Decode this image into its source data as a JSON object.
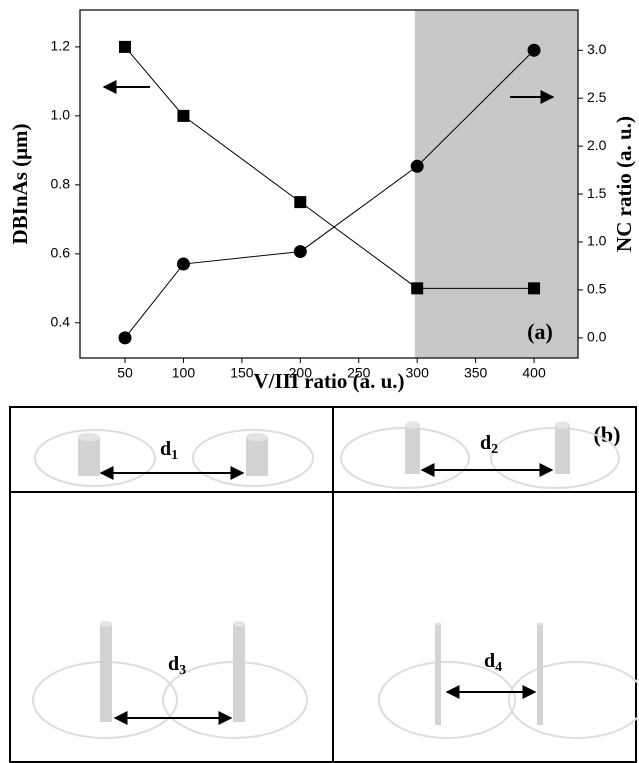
{
  "chart_data": {
    "type": "line",
    "x_label": "V/III ratio (a. u.)",
    "y_label": "DBInAs (μm)",
    "y2_label": "NC ratio (a. u.)",
    "annotation": "(a)",
    "x": [
      50,
      100,
      200,
      300,
      400
    ],
    "series": [
      {
        "color": "#000000",
        "marker": "square",
        "values": [
          1.2,
          1.0,
          0.75,
          0.5,
          0.5
        ]
      },
      {
        "color": "#000000",
        "marker": "circle",
        "axis": "y2",
        "values": [
          0.0,
          0.77,
          0.9,
          1.79,
          3.0
        ]
      }
    ],
    "xlim": [
      11.5,
      437.6
    ],
    "xticks": [
      50,
      100,
      150,
      200,
      250,
      300,
      350,
      400
    ],
    "ylim": [
      0.298,
      1.307
    ],
    "yticks": [
      0.4,
      0.6,
      0.8,
      {
        "value": 1,
        "label": "1.0"
      },
      1.2
    ],
    "y2lim": [
      -0.21,
      3.42
    ],
    "y2ticks": [
      {
        "value": 0,
        "label": "0.0"
      },
      0.5,
      {
        "value": 1,
        "label": "1.0"
      },
      1.5,
      {
        "value": 2,
        "label": "2.0"
      },
      2.5,
      {
        "value": 3,
        "label": "3.0"
      }
    ],
    "shaded_xrange": [
      298,
      437.6
    ],
    "shade_color": "#c8c8c8"
  },
  "panel_b": {
    "label": "(b)",
    "cells": [
      {
        "label": "d",
        "subscript": "1"
      },
      {
        "label": "d",
        "subscript": "2"
      },
      {
        "label": "d",
        "subscript": "3"
      },
      {
        "label": "d",
        "subscript": "4"
      }
    ]
  }
}
